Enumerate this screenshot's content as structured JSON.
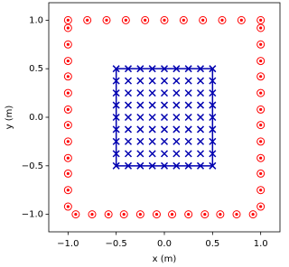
{
  "chart_data": {
    "type": "scatter",
    "xlabel": "x (m)",
    "ylabel": "y (m)",
    "xlim": [
      -1.2,
      1.2
    ],
    "ylim": [
      -1.18,
      1.18
    ],
    "xticks": [
      {
        "value": -1.0,
        "label": "−1.0"
      },
      {
        "value": -0.5,
        "label": "−0.5"
      },
      {
        "value": 0.0,
        "label": "0.0"
      },
      {
        "value": 0.5,
        "label": "0.5"
      },
      {
        "value": 1.0,
        "label": "1.0"
      }
    ],
    "yticks": [
      {
        "value": -1.0,
        "label": "−1.0"
      },
      {
        "value": -0.5,
        "label": "−0.5"
      },
      {
        "value": 0.0,
        "label": "0.0"
      },
      {
        "value": 0.5,
        "label": "0.5"
      },
      {
        "value": 1.0,
        "label": "1.0"
      }
    ],
    "series": [
      {
        "marker": "circle-dot",
        "color": "#ff0000",
        "x": [
          -1,
          -0.8,
          -0.6,
          -0.4,
          -0.2,
          0,
          0.2,
          0.4,
          0.6,
          0.8,
          1,
          1,
          1,
          1,
          1,
          1,
          1,
          1,
          1,
          1,
          1,
          1,
          1,
          0.92,
          0.75,
          0.58,
          0.42,
          0.25,
          0.08,
          -0.08,
          -0.25,
          -0.42,
          -0.58,
          -0.75,
          -0.92,
          -1,
          -1,
          -1,
          -1,
          -1,
          -1,
          -1,
          -1,
          -1,
          -1,
          -1,
          -1
        ],
        "y": [
          1,
          1,
          1,
          1,
          1,
          1,
          1,
          1,
          1,
          1,
          1,
          0.92,
          0.75,
          0.58,
          0.42,
          0.25,
          0.08,
          -0.08,
          -0.25,
          -0.42,
          -0.58,
          -0.75,
          -0.92,
          -1,
          -1,
          -1,
          -1,
          -1,
          -1,
          -1,
          -1,
          -1,
          -1,
          -1,
          -1,
          -0.92,
          -0.75,
          -0.58,
          -0.42,
          -0.25,
          -0.08,
          0.08,
          0.25,
          0.42,
          0.58,
          0.75,
          0.92
        ]
      },
      {
        "marker": "x",
        "color": "#0000b0",
        "x": [
          -0.5,
          -0.375,
          -0.25,
          -0.125,
          0,
          0.125,
          0.25,
          0.375,
          0.5,
          -0.5,
          -0.375,
          -0.25,
          -0.125,
          0,
          0.125,
          0.25,
          0.375,
          0.5,
          -0.5,
          -0.375,
          -0.25,
          -0.125,
          0,
          0.125,
          0.25,
          0.375,
          0.5,
          -0.5,
          -0.375,
          -0.25,
          -0.125,
          0,
          0.125,
          0.25,
          0.375,
          0.5,
          -0.5,
          -0.375,
          -0.25,
          -0.125,
          0,
          0.125,
          0.25,
          0.375,
          0.5,
          -0.5,
          -0.375,
          -0.25,
          -0.125,
          0,
          0.125,
          0.25,
          0.375,
          0.5,
          -0.5,
          -0.375,
          -0.25,
          -0.125,
          0,
          0.125,
          0.25,
          0.375,
          0.5,
          -0.5,
          -0.375,
          -0.25,
          -0.125,
          0,
          0.125,
          0.25,
          0.375,
          0.5,
          -0.5,
          -0.375,
          -0.25,
          -0.125,
          0,
          0.125,
          0.25,
          0.375,
          0.5
        ],
        "y": [
          -0.5,
          -0.5,
          -0.5,
          -0.5,
          -0.5,
          -0.5,
          -0.5,
          -0.5,
          -0.5,
          -0.375,
          -0.375,
          -0.375,
          -0.375,
          -0.375,
          -0.375,
          -0.375,
          -0.375,
          -0.375,
          -0.25,
          -0.25,
          -0.25,
          -0.25,
          -0.25,
          -0.25,
          -0.25,
          -0.25,
          -0.25,
          -0.125,
          -0.125,
          -0.125,
          -0.125,
          -0.125,
          -0.125,
          -0.125,
          -0.125,
          -0.125,
          0,
          0,
          0,
          0,
          0,
          0,
          0,
          0,
          0,
          0.125,
          0.125,
          0.125,
          0.125,
          0.125,
          0.125,
          0.125,
          0.125,
          0.125,
          0.25,
          0.25,
          0.25,
          0.25,
          0.25,
          0.25,
          0.25,
          0.25,
          0.25,
          0.375,
          0.375,
          0.375,
          0.375,
          0.375,
          0.375,
          0.375,
          0.375,
          0.375,
          0.5,
          0.5,
          0.5,
          0.5,
          0.5,
          0.5,
          0.5,
          0.5,
          0.5
        ]
      },
      {
        "marker": "line",
        "color": "#0000b0",
        "x": [
          -0.5,
          0.5,
          0.5,
          -0.5,
          -0.5
        ],
        "y": [
          0.5,
          0.5,
          -0.5,
          -0.5,
          0.5
        ]
      }
    ]
  }
}
